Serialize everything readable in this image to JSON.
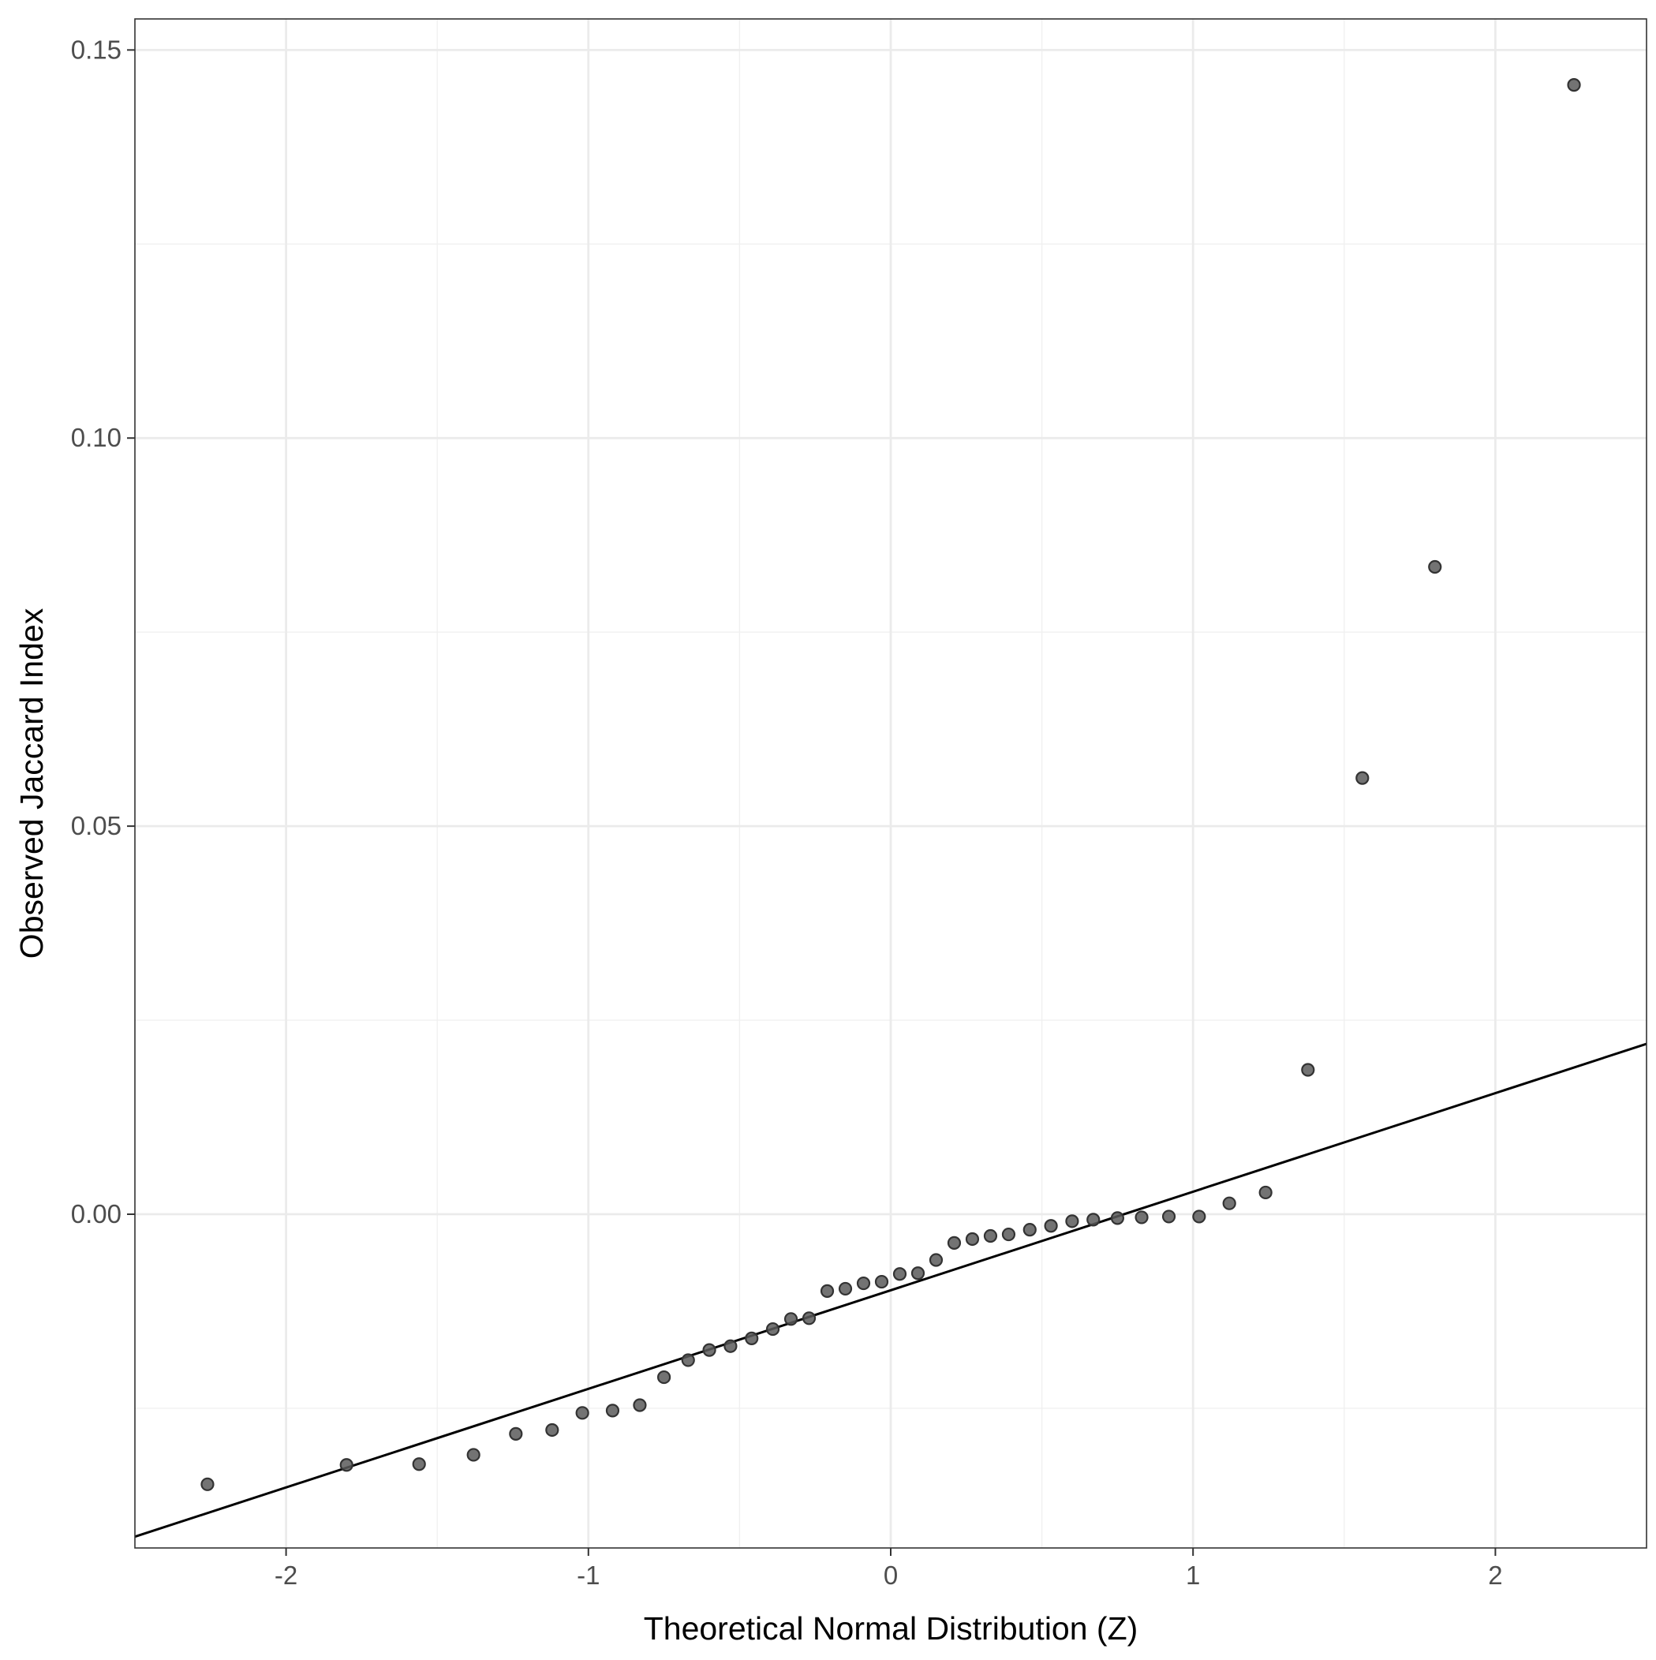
{
  "chart_data": {
    "type": "scatter",
    "title": "",
    "xlabel": "Theoretical Normal Distribution (Z)",
    "ylabel": "Observed Jaccard Index",
    "xlim": [
      -2.5,
      2.5
    ],
    "ylim": [
      -0.043,
      0.154
    ],
    "x_ticks": [
      -2,
      -1,
      0,
      1,
      2
    ],
    "x_tick_labels": [
      "-2",
      "-1",
      "0",
      "1",
      "2"
    ],
    "y_ticks": [
      0.0,
      0.05,
      0.1,
      0.15
    ],
    "y_tick_labels": [
      "0.00",
      "0.05",
      "0.10",
      "0.15"
    ],
    "grid": true,
    "legend": "none",
    "points_color": "#5a5a5a",
    "line_color": "#000000",
    "reference_line": {
      "intercept": -0.0098,
      "slope": 0.0127
    },
    "points": [
      {
        "x": -2.26,
        "y": -0.0348
      },
      {
        "x": -1.8,
        "y": -0.0323
      },
      {
        "x": -1.56,
        "y": -0.0322
      },
      {
        "x": -1.38,
        "y": -0.031
      },
      {
        "x": -1.24,
        "y": -0.0283
      },
      {
        "x": -1.12,
        "y": -0.0278
      },
      {
        "x": -1.02,
        "y": -0.0256
      },
      {
        "x": -0.92,
        "y": -0.0253
      },
      {
        "x": -0.83,
        "y": -0.0246
      },
      {
        "x": -0.75,
        "y": -0.021
      },
      {
        "x": -0.67,
        "y": -0.0188
      },
      {
        "x": -0.6,
        "y": -0.0175
      },
      {
        "x": -0.53,
        "y": -0.017
      },
      {
        "x": -0.46,
        "y": -0.016
      },
      {
        "x": -0.39,
        "y": -0.0148
      },
      {
        "x": -0.33,
        "y": -0.0135
      },
      {
        "x": -0.27,
        "y": -0.0134
      },
      {
        "x": -0.21,
        "y": -0.0099
      },
      {
        "x": -0.15,
        "y": -0.0096
      },
      {
        "x": -0.09,
        "y": -0.0089
      },
      {
        "x": -0.03,
        "y": -0.0087
      },
      {
        "x": 0.03,
        "y": -0.0077
      },
      {
        "x": 0.09,
        "y": -0.0076
      },
      {
        "x": 0.15,
        "y": -0.0059
      },
      {
        "x": 0.21,
        "y": -0.0037
      },
      {
        "x": 0.27,
        "y": -0.0032
      },
      {
        "x": 0.33,
        "y": -0.0028
      },
      {
        "x": 0.39,
        "y": -0.0026
      },
      {
        "x": 0.46,
        "y": -0.002
      },
      {
        "x": 0.53,
        "y": -0.0015
      },
      {
        "x": 0.6,
        "y": -0.0009
      },
      {
        "x": 0.67,
        "y": -0.0007
      },
      {
        "x": 0.75,
        "y": -0.0005
      },
      {
        "x": 0.83,
        "y": -0.0004
      },
      {
        "x": 0.92,
        "y": -0.0003
      },
      {
        "x": 1.02,
        "y": -0.0003
      },
      {
        "x": 1.12,
        "y": 0.0014
      },
      {
        "x": 1.24,
        "y": 0.0028
      },
      {
        "x": 1.38,
        "y": 0.0186
      },
      {
        "x": 1.56,
        "y": 0.0562
      },
      {
        "x": 1.8,
        "y": 0.0834
      },
      {
        "x": 2.26,
        "y": 0.1455
      }
    ]
  }
}
